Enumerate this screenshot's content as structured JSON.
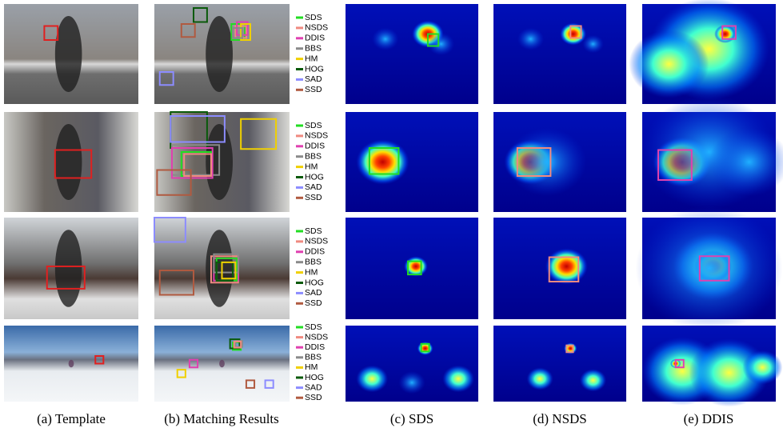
{
  "legend": [
    {
      "name": "SDS",
      "color": "#22dd22"
    },
    {
      "name": "NSDS",
      "color": "#f08a80"
    },
    {
      "name": "DDIS",
      "color": "#e040b0"
    },
    {
      "name": "BBS",
      "color": "#8a8a8a"
    },
    {
      "name": "HM",
      "color": "#f0d000"
    },
    {
      "name": "HOG",
      "color": "#0a5a0a"
    },
    {
      "name": "SAD",
      "color": "#8c8cff"
    },
    {
      "name": "SSD",
      "color": "#b05a40"
    }
  ],
  "captions": [
    "(a) Template",
    "(b) Matching Results",
    "(c) SDS",
    "(d) NSDS",
    "(e) DDIS"
  ]
}
